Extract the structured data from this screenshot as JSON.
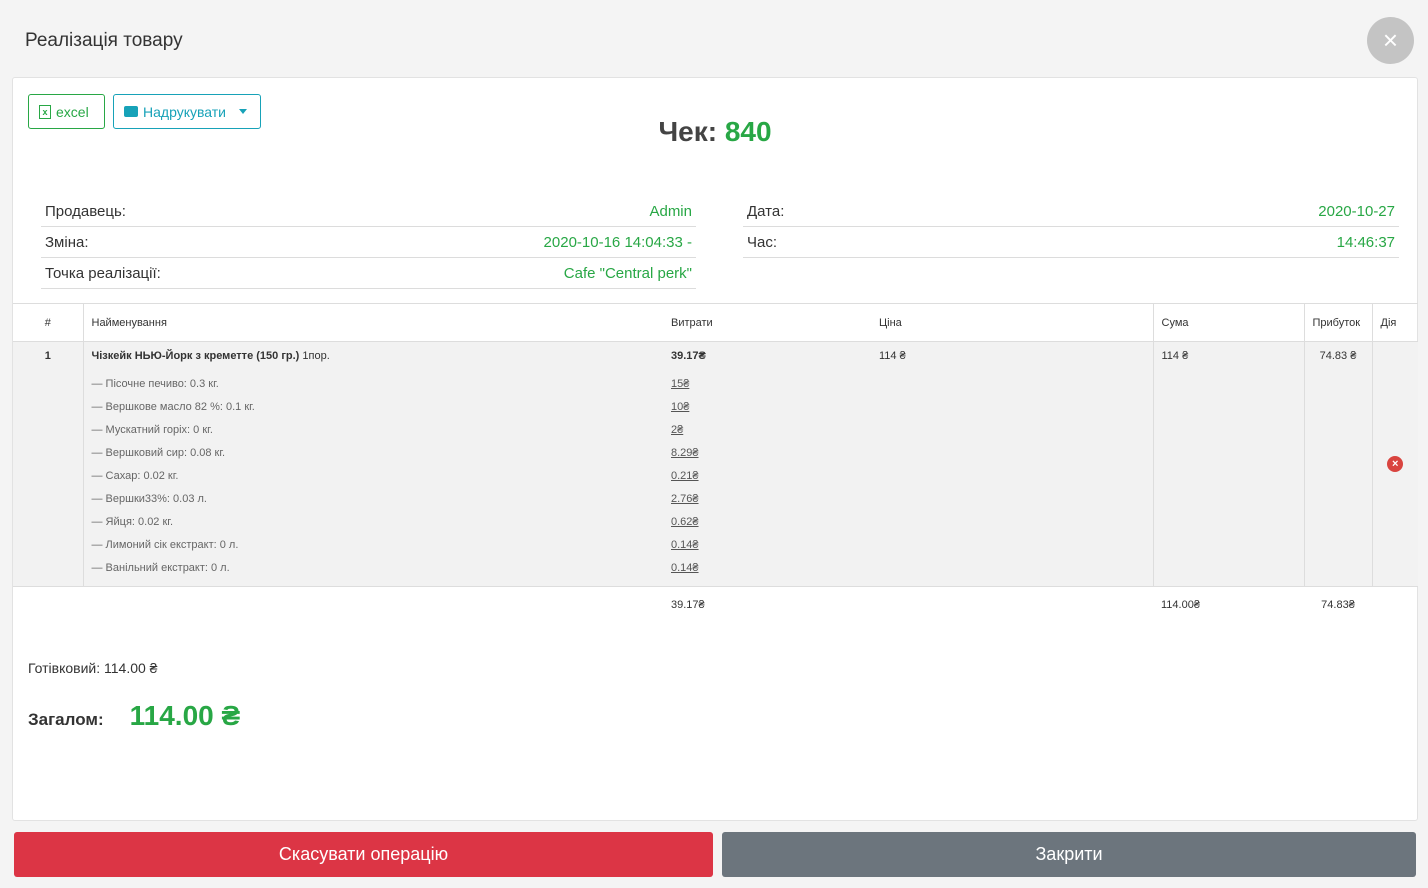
{
  "title": "Реалізація товару",
  "toolbar": {
    "excel": "excel",
    "print": "Надрукувати"
  },
  "check": {
    "label": "Чек:",
    "number": "840"
  },
  "info_left": [
    {
      "label": "Продавець:",
      "value": "Admin"
    },
    {
      "label": "Зміна:",
      "value": "2020-10-16 14:04:33 -"
    },
    {
      "label": "Точка реалізації:",
      "value": "Cafe \"Central perk\""
    }
  ],
  "info_right": [
    {
      "label": "Дата:",
      "value": "2020-10-27"
    },
    {
      "label": "Час:",
      "value": "14:46:37"
    }
  ],
  "table": {
    "headers": [
      "#",
      "Найменування",
      "Витрати",
      "Ціна",
      "Сума",
      "Прибуток",
      "Дія"
    ],
    "row": {
      "num": "1",
      "name": "Чізкейк НЬЮ-Йорк з креметте (150 гр.)",
      "qty": "1пор.",
      "cost": "39.17₴",
      "price": "114 ₴",
      "sum": "114 ₴",
      "profit": "74.83 ₴",
      "ingredients": [
        {
          "name": "— Пісочне печиво: 0.3 кг.",
          "cost": "15₴"
        },
        {
          "name": "— Вершкове масло 82 %: 0.1 кг.",
          "cost": "10₴"
        },
        {
          "name": "— Мускатний горіх: 0 кг.",
          "cost": "2₴"
        },
        {
          "name": "— Вершковий сир: 0.08 кг.",
          "cost": "8.29₴"
        },
        {
          "name": "— Сахар: 0.02 кг.",
          "cost": "0.21₴"
        },
        {
          "name": "— Вершки33%: 0.03 л.",
          "cost": "2.76₴"
        },
        {
          "name": "— Яйця: 0.02 кг.",
          "cost": "0.62₴"
        },
        {
          "name": "— Лимоний сік екстракт: 0 л.",
          "cost": "0.14₴"
        },
        {
          "name": "— Ванільний екстракт: 0 л.",
          "cost": "0.14₴"
        }
      ]
    },
    "totals": {
      "cost": "39.17₴",
      "sum": "114.00₴",
      "profit": "74.83₴"
    }
  },
  "cash": "Готівковий: 114.00 ₴",
  "total": {
    "label": "Загалом:",
    "amount": "114.00 ₴"
  },
  "buttons": {
    "cancel": "Скасувати операцію",
    "close": "Закрити"
  },
  "colors": {
    "accent": "#28a745",
    "danger": "#dc3545",
    "secondary": "#6c757d",
    "info": "#17a2b8"
  }
}
